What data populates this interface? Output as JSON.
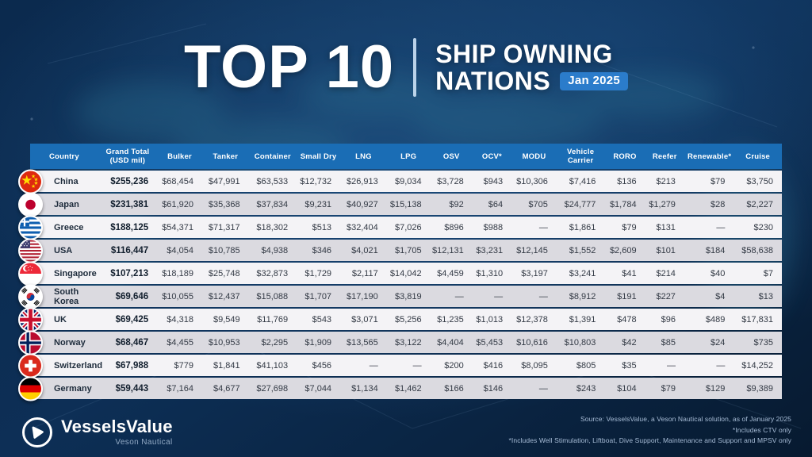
{
  "title": {
    "top": "TOP 10",
    "line1": "SHIP OWNING",
    "line2": "NATIONS",
    "badge": "Jan 2025"
  },
  "colors": {
    "header_blue": "#1a6db5",
    "badge_blue": "#2b7ccb",
    "row_light": "#f4f3f6",
    "row_dark": "#dbdae0",
    "background_navy": "#0d2f56"
  },
  "table": {
    "columns": [
      "Country",
      "Grand Total\n(USD mil)",
      "Bulker",
      "Tanker",
      "Container",
      "Small Dry",
      "LNG",
      "LPG",
      "OSV",
      "OCV*",
      "MODU",
      "Vehicle\nCarrier",
      "RORO",
      "Reefer",
      "Renewable*",
      "Cruise"
    ],
    "rows": [
      {
        "country": "China",
        "flag": "china",
        "values": [
          "$255,236",
          "$68,454",
          "$47,991",
          "$63,533",
          "$12,732",
          "$26,913",
          "$9,034",
          "$3,728",
          "$943",
          "$10,306",
          "$7,416",
          "$136",
          "$213",
          "$79",
          "$3,750"
        ]
      },
      {
        "country": "Japan",
        "flag": "japan",
        "values": [
          "$231,381",
          "$61,920",
          "$35,368",
          "$37,834",
          "$9,231",
          "$40,927",
          "$15,138",
          "$92",
          "$64",
          "$705",
          "$24,777",
          "$1,784",
          "$1,279",
          "$28",
          "$2,227"
        ]
      },
      {
        "country": "Greece",
        "flag": "greece",
        "values": [
          "$188,125",
          "$54,371",
          "$71,317",
          "$18,302",
          "$513",
          "$32,404",
          "$7,026",
          "$896",
          "$988",
          "—",
          "$1,861",
          "$79",
          "$131",
          "—",
          "$230"
        ]
      },
      {
        "country": "USA",
        "flag": "usa",
        "values": [
          "$116,447",
          "$4,054",
          "$10,785",
          "$4,938",
          "$346",
          "$4,021",
          "$1,705",
          "$12,131",
          "$3,231",
          "$12,145",
          "$1,552",
          "$2,609",
          "$101",
          "$184",
          "$58,638"
        ]
      },
      {
        "country": "Singapore",
        "flag": "singapore",
        "values": [
          "$107,213",
          "$18,189",
          "$25,748",
          "$32,873",
          "$1,729",
          "$2,117",
          "$14,042",
          "$4,459",
          "$1,310",
          "$3,197",
          "$3,241",
          "$41",
          "$214",
          "$40",
          "$7"
        ]
      },
      {
        "country": "South Korea",
        "flag": "southkorea",
        "values": [
          "$69,646",
          "$10,055",
          "$12,437",
          "$15,088",
          "$1,707",
          "$17,190",
          "$3,819",
          "—",
          "—",
          "—",
          "$8,912",
          "$191",
          "$227",
          "$4",
          "$13"
        ]
      },
      {
        "country": "UK",
        "flag": "uk",
        "values": [
          "$69,425",
          "$4,318",
          "$9,549",
          "$11,769",
          "$543",
          "$3,071",
          "$5,256",
          "$1,235",
          "$1,013",
          "$12,378",
          "$1,391",
          "$478",
          "$96",
          "$489",
          "$17,831"
        ]
      },
      {
        "country": "Norway",
        "flag": "norway",
        "values": [
          "$68,467",
          "$4,455",
          "$10,953",
          "$2,295",
          "$1,909",
          "$13,565",
          "$3,122",
          "$4,404",
          "$5,453",
          "$10,616",
          "$10,803",
          "$42",
          "$85",
          "$24",
          "$735"
        ]
      },
      {
        "country": "Switzerland",
        "flag": "switzerland",
        "values": [
          "$67,988",
          "$779",
          "$1,841",
          "$41,103",
          "$456",
          "—",
          "—",
          "$200",
          "$416",
          "$8,095",
          "$805",
          "$35",
          "—",
          "—",
          "$14,252"
        ]
      },
      {
        "country": "Germany",
        "flag": "germany",
        "values": [
          "$59,443",
          "$7,164",
          "$4,677",
          "$27,698",
          "$7,044",
          "$1,134",
          "$1,462",
          "$166",
          "$146",
          "—",
          "$243",
          "$104",
          "$79",
          "$129",
          "$9,389"
        ]
      }
    ]
  },
  "chart_data": {
    "type": "table",
    "title": "Top 10 Ship Owning Nations Jan 2025 (USD mil)",
    "columns": [
      "Country",
      "Grand Total (USD mil)",
      "Bulker",
      "Tanker",
      "Container",
      "Small Dry",
      "LNG",
      "LPG",
      "OSV",
      "OCV",
      "MODU",
      "Vehicle Carrier",
      "RORO",
      "Reefer",
      "Renewable",
      "Cruise"
    ],
    "rows": [
      [
        "China",
        255236,
        68454,
        47991,
        63533,
        12732,
        26913,
        9034,
        3728,
        943,
        10306,
        7416,
        136,
        213,
        79,
        3750
      ],
      [
        "Japan",
        231381,
        61920,
        35368,
        37834,
        9231,
        40927,
        15138,
        92,
        64,
        705,
        24777,
        1784,
        1279,
        28,
        2227
      ],
      [
        "Greece",
        188125,
        54371,
        71317,
        18302,
        513,
        32404,
        7026,
        896,
        988,
        null,
        1861,
        79,
        131,
        null,
        230
      ],
      [
        "USA",
        116447,
        4054,
        10785,
        4938,
        346,
        4021,
        1705,
        12131,
        3231,
        12145,
        1552,
        2609,
        101,
        184,
        58638
      ],
      [
        "Singapore",
        107213,
        18189,
        25748,
        32873,
        1729,
        2117,
        14042,
        4459,
        1310,
        3197,
        3241,
        41,
        214,
        40,
        7
      ],
      [
        "South Korea",
        69646,
        10055,
        12437,
        15088,
        1707,
        17190,
        3819,
        null,
        null,
        null,
        8912,
        191,
        227,
        4,
        13
      ],
      [
        "UK",
        69425,
        4318,
        9549,
        11769,
        543,
        3071,
        5256,
        1235,
        1013,
        12378,
        1391,
        478,
        96,
        489,
        17831
      ],
      [
        "Norway",
        68467,
        4455,
        10953,
        2295,
        1909,
        13565,
        3122,
        4404,
        5453,
        10616,
        10803,
        42,
        85,
        24,
        735
      ],
      [
        "Switzerland",
        67988,
        779,
        1841,
        41103,
        456,
        null,
        null,
        200,
        416,
        8095,
        805,
        35,
        null,
        null,
        14252
      ],
      [
        "Germany",
        59443,
        7164,
        4677,
        27698,
        7044,
        1134,
        1462,
        166,
        146,
        null,
        243,
        104,
        79,
        129,
        9389
      ]
    ]
  },
  "footer": {
    "brand_name": "VesselsValue",
    "brand_subtitle": "Veson Nautical",
    "source_lines": [
      "Source: VesselsValue, a Veson Nautical solution, as of January 2025",
      "*Includes CTV only",
      "*Includes Well Stimulation, Liftboat, Dive Support, Maintenance and Support and MPSV only"
    ]
  }
}
